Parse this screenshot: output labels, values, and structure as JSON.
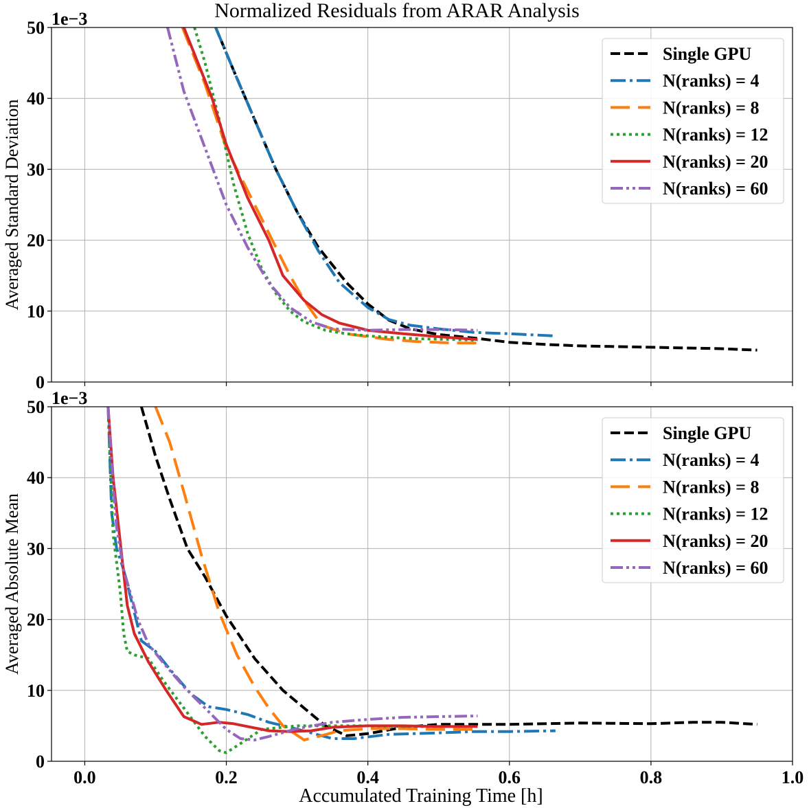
{
  "figure": {
    "title": "Normalized Residuals from ARAR Analysis",
    "xlabel": "Accumulated Training Time [h]",
    "x_ticks": [
      "0.0",
      "0.2",
      "0.4",
      "0.6",
      "0.8",
      "1.0"
    ],
    "y_ticks": [
      "0",
      "10",
      "20",
      "30",
      "40",
      "50"
    ]
  },
  "chart_data": [
    {
      "type": "line",
      "title": "Normalized Residuals from ARAR Analysis",
      "xlabel": "",
      "ylabel": "Averaged Standard Deviation",
      "y_offset_label": "1e−3",
      "y_scale": 0.001,
      "xlim": [
        -0.047,
        1.0
      ],
      "ylim": [
        0,
        50
      ],
      "grid": true,
      "legend_position": "top-right",
      "series": [
        {
          "name": "Single GPU",
          "color": "#000000",
          "style": "dashed",
          "x": [
            0.185,
            0.21,
            0.24,
            0.27,
            0.3,
            0.33,
            0.37,
            0.4,
            0.43,
            0.46,
            0.5,
            0.55,
            0.6,
            0.65,
            0.7,
            0.75,
            0.8,
            0.85,
            0.9,
            0.95
          ],
          "y": [
            50,
            44,
            37,
            30,
            24,
            19,
            14,
            11,
            8.7,
            7.5,
            6.7,
            6.2,
            5.6,
            5.3,
            5.1,
            5.0,
            4.9,
            4.8,
            4.7,
            4.5
          ]
        },
        {
          "name": "N(ranks) = 4",
          "color": "#1f77b4",
          "style": "dashdot",
          "x": [
            0.185,
            0.21,
            0.24,
            0.27,
            0.3,
            0.33,
            0.36,
            0.4,
            0.43,
            0.46,
            0.5,
            0.55,
            0.6,
            0.665
          ],
          "y": [
            50,
            44,
            37,
            30,
            24,
            18.5,
            14,
            10.5,
            8.8,
            8.0,
            7.5,
            7.0,
            6.8,
            6.5
          ]
        },
        {
          "name": "N(ranks) = 8",
          "color": "#ff7f0e",
          "style": "longdash",
          "x": [
            0.138,
            0.17,
            0.2,
            0.23,
            0.26,
            0.29,
            0.31,
            0.335,
            0.37,
            0.4,
            0.43,
            0.47,
            0.52,
            0.555
          ],
          "y": [
            50,
            42,
            33,
            27,
            21,
            15,
            11.5,
            8.0,
            6.8,
            6.4,
            6.0,
            5.7,
            5.5,
            5.5
          ]
        },
        {
          "name": "N(ranks) = 12",
          "color": "#2ca02c",
          "style": "dotted",
          "x": [
            0.155,
            0.17,
            0.19,
            0.21,
            0.23,
            0.25,
            0.27,
            0.29,
            0.31,
            0.34,
            0.37,
            0.4,
            0.43,
            0.47,
            0.52,
            0.555
          ],
          "y": [
            50,
            45,
            37,
            28,
            21,
            16,
            12.5,
            10,
            8.5,
            7.3,
            6.8,
            6.5,
            6.3,
            6.1,
            6.0,
            5.9
          ]
        },
        {
          "name": "N(ranks) = 20",
          "color": "#d62728",
          "style": "solid",
          "x": [
            0.14,
            0.16,
            0.18,
            0.2,
            0.23,
            0.26,
            0.28,
            0.31,
            0.335,
            0.36,
            0.4,
            0.45,
            0.5,
            0.555
          ],
          "y": [
            50,
            45,
            40,
            33.5,
            26,
            20,
            15,
            11.5,
            9.5,
            8.3,
            7.3,
            6.8,
            6.4,
            6.0
          ]
        },
        {
          "name": "N(ranks) = 60",
          "color": "#9467bd",
          "style": "dashdotdot",
          "x": [
            0.117,
            0.14,
            0.17,
            0.2,
            0.23,
            0.26,
            0.29,
            0.32,
            0.35,
            0.4,
            0.45,
            0.5,
            0.555
          ],
          "y": [
            50,
            41,
            33,
            25,
            19,
            14,
            10.5,
            8.5,
            7.5,
            7.3,
            7.4,
            7.4,
            7.3
          ]
        }
      ]
    },
    {
      "type": "line",
      "title": "",
      "xlabel": "Accumulated Training Time [h]",
      "ylabel": "Averaged Absolute Mean",
      "y_offset_label": "1e−3",
      "y_scale": 0.001,
      "xlim": [
        -0.047,
        1.0
      ],
      "ylim": [
        0,
        50
      ],
      "grid": true,
      "legend_position": "top-right",
      "series": [
        {
          "name": "Single GPU",
          "color": "#000000",
          "style": "dashed",
          "x": [
            0.08,
            0.1,
            0.12,
            0.145,
            0.17,
            0.2,
            0.24,
            0.28,
            0.31,
            0.34,
            0.37,
            0.4,
            0.45,
            0.5,
            0.6,
            0.7,
            0.8,
            0.86,
            0.9,
            0.95
          ],
          "y": [
            50,
            43,
            37,
            30,
            26,
            20.5,
            14.5,
            10,
            7.5,
            5.0,
            3.6,
            3.9,
            4.8,
            5.2,
            5.2,
            5.4,
            5.3,
            5.5,
            5.5,
            5.2
          ]
        },
        {
          "name": "N(ranks) = 4",
          "color": "#1f77b4",
          "style": "dashdot",
          "x": [
            0.033,
            0.038,
            0.045,
            0.055,
            0.065,
            0.08,
            0.1,
            0.12,
            0.15,
            0.175,
            0.2,
            0.23,
            0.26,
            0.29,
            0.32,
            0.35,
            0.38,
            0.43,
            0.5,
            0.55,
            0.6,
            0.665
          ],
          "y": [
            50,
            35,
            30,
            27,
            23,
            17,
            15.5,
            13,
            9.5,
            7.7,
            7.3,
            6.6,
            5.5,
            4.8,
            4.0,
            3.2,
            3.2,
            3.8,
            4.0,
            4.2,
            4.2,
            4.3
          ]
        },
        {
          "name": "N(ranks) = 8",
          "color": "#ff7f0e",
          "style": "longdash",
          "x": [
            0.1,
            0.12,
            0.14,
            0.165,
            0.19,
            0.215,
            0.24,
            0.26,
            0.28,
            0.31,
            0.33,
            0.36,
            0.4,
            0.45,
            0.5,
            0.555
          ],
          "y": [
            50,
            45,
            38,
            29,
            21,
            15,
            10.5,
            7.5,
            5.0,
            3.0,
            3.5,
            4.3,
            4.6,
            4.6,
            4.5,
            4.5
          ]
        },
        {
          "name": "N(ranks) = 12",
          "color": "#2ca02c",
          "style": "dotted",
          "x": [
            0.033,
            0.04,
            0.05,
            0.055,
            0.06,
            0.07,
            0.09,
            0.11,
            0.14,
            0.17,
            0.19,
            0.2,
            0.22,
            0.25,
            0.3,
            0.35,
            0.4,
            0.45,
            0.5,
            0.555
          ],
          "y": [
            50,
            32,
            24,
            18,
            15.5,
            15,
            14.5,
            11.5,
            7.5,
            3.5,
            1.5,
            1.2,
            2.5,
            4.5,
            5.0,
            5.0,
            5.0,
            4.9,
            4.9,
            4.9
          ]
        },
        {
          "name": "N(ranks) = 20",
          "color": "#d62728",
          "style": "solid",
          "x": [
            0.033,
            0.04,
            0.05,
            0.06,
            0.07,
            0.09,
            0.115,
            0.14,
            0.165,
            0.19,
            0.21,
            0.23,
            0.26,
            0.29,
            0.32,
            0.35,
            0.4,
            0.45,
            0.5,
            0.555
          ],
          "y": [
            50,
            40,
            31,
            22,
            18,
            14,
            10,
            6.3,
            5.2,
            5.5,
            5.3,
            4.9,
            4.3,
            4.2,
            4.3,
            4.8,
            5.0,
            5.0,
            4.9,
            4.9
          ]
        },
        {
          "name": "N(ranks) = 60",
          "color": "#9467bd",
          "style": "dashdotdot",
          "x": [
            0.033,
            0.038,
            0.045,
            0.055,
            0.065,
            0.075,
            0.09,
            0.11,
            0.14,
            0.17,
            0.2,
            0.22,
            0.24,
            0.26,
            0.3,
            0.35,
            0.4,
            0.45,
            0.5,
            0.555
          ],
          "y": [
            50,
            42,
            33,
            27,
            23.5,
            20,
            16.5,
            14,
            10.5,
            7.5,
            4.5,
            3.2,
            3.0,
            3.5,
            4.6,
            5.5,
            5.9,
            6.2,
            6.3,
            6.4
          ]
        }
      ]
    }
  ]
}
